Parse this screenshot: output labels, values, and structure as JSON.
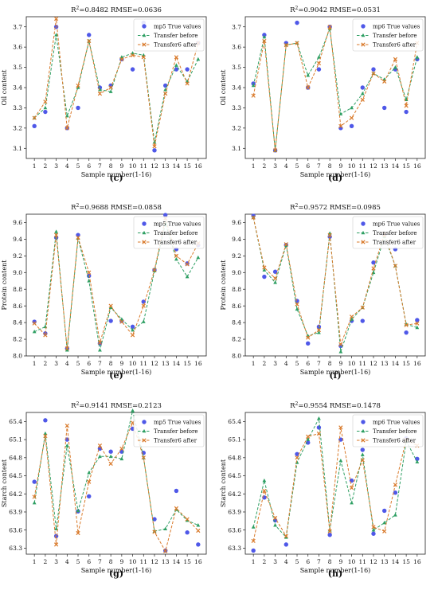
{
  "chart_data": [
    {
      "id": "c",
      "panel_label": "(c)",
      "type": "line",
      "title": "R²=0.8482   RMSE=0.0636",
      "xlabel": "Sample number(1-16)",
      "ylabel": "Oil content",
      "x": [
        1,
        2,
        3,
        4,
        5,
        6,
        7,
        8,
        9,
        10,
        11,
        12,
        13,
        14,
        15,
        16
      ],
      "ylim": [
        3.05,
        3.75
      ],
      "yticks": [
        3.1,
        3.2,
        3.3,
        3.4,
        3.5,
        3.6,
        3.7
      ],
      "ytick_decimals": 1,
      "legend": "top-right",
      "series": [
        {
          "name": "mp5 True values",
          "style": "points",
          "color": "#4f58e8",
          "values": [
            3.21,
            3.28,
            3.7,
            3.2,
            3.3,
            3.66,
            3.4,
            3.41,
            3.54,
            3.49,
            3.72,
            3.09,
            3.41,
            3.49,
            3.49,
            3.62
          ]
        },
        {
          "name": "Transfer before",
          "style": "dash-triangle",
          "color": "#2e9f63",
          "values": [
            3.25,
            3.3,
            3.66,
            3.26,
            3.4,
            3.63,
            3.39,
            3.38,
            3.55,
            3.57,
            3.56,
            3.13,
            3.39,
            3.51,
            3.43,
            3.54
          ]
        },
        {
          "name": "Transfer6 after",
          "style": "dash-x",
          "color": "#d97a2b",
          "values": [
            3.25,
            3.33,
            3.74,
            3.2,
            3.41,
            3.63,
            3.37,
            3.4,
            3.54,
            3.56,
            3.55,
            3.11,
            3.37,
            3.55,
            3.42,
            3.62
          ]
        }
      ]
    },
    {
      "id": "d",
      "panel_label": "(d)",
      "type": "line",
      "title": "R²=0.9042   RMSE=0.0531",
      "xlabel": "Sample number(1-16)",
      "ylabel": "Oil content",
      "x": [
        1,
        2,
        3,
        4,
        5,
        6,
        7,
        8,
        9,
        10,
        11,
        12,
        13,
        14,
        15,
        16
      ],
      "ylim": [
        3.05,
        3.75
      ],
      "yticks": [
        3.1,
        3.2,
        3.3,
        3.4,
        3.5,
        3.6,
        3.7
      ],
      "ytick_decimals": 1,
      "legend": "top-right",
      "series": [
        {
          "name": "mp6 True values",
          "style": "points",
          "color": "#4f58e8",
          "values": [
            3.42,
            3.66,
            3.09,
            3.62,
            3.72,
            3.4,
            3.49,
            3.7,
            3.2,
            3.21,
            3.4,
            3.49,
            3.3,
            3.49,
            3.28,
            3.54
          ]
        },
        {
          "name": "Transfer before",
          "style": "dash-triangle",
          "color": "#2e9f63",
          "values": [
            3.41,
            3.65,
            3.09,
            3.61,
            3.62,
            3.46,
            3.55,
            3.69,
            3.27,
            3.3,
            3.37,
            3.47,
            3.44,
            3.5,
            3.34,
            3.55
          ]
        },
        {
          "name": "Transfer6 after",
          "style": "dash-x",
          "color": "#d97a2b",
          "values": [
            3.36,
            3.63,
            3.09,
            3.61,
            3.62,
            3.4,
            3.52,
            3.7,
            3.21,
            3.25,
            3.34,
            3.47,
            3.43,
            3.54,
            3.31,
            3.62
          ]
        }
      ]
    },
    {
      "id": "e",
      "panel_label": "(e)",
      "type": "line",
      "title": "R²=0.9688   RMSE=0.0858",
      "xlabel": "Sample number(1-16)",
      "ylabel": "Protein content",
      "x": [
        1,
        2,
        3,
        4,
        5,
        6,
        7,
        8,
        9,
        10,
        11,
        12,
        13,
        14,
        15,
        16
      ],
      "ylim": [
        8.0,
        9.7
      ],
      "yticks": [
        8.0,
        8.2,
        8.4,
        8.6,
        8.8,
        9.0,
        9.2,
        9.4,
        9.6
      ],
      "ytick_decimals": 1,
      "legend": "top-right",
      "series": [
        {
          "name": "mp5 True values",
          "style": "points",
          "color": "#4f58e8",
          "values": [
            8.41,
            8.27,
            9.42,
            8.09,
            9.45,
            8.96,
            8.15,
            8.42,
            8.42,
            8.35,
            8.65,
            9.03,
            9.69,
            9.28,
            9.11,
            9.33
          ]
        },
        {
          "name": "Transfer before",
          "style": "dash-triangle",
          "color": "#2e9f63",
          "values": [
            8.29,
            8.35,
            9.49,
            8.07,
            9.41,
            8.9,
            8.07,
            8.58,
            8.44,
            8.31,
            8.41,
            9.02,
            9.59,
            9.16,
            8.95,
            9.18
          ]
        },
        {
          "name": "Transfer6 after",
          "style": "dash-x",
          "color": "#d97a2b",
          "values": [
            8.39,
            8.25,
            9.45,
            8.09,
            9.42,
            9.0,
            8.16,
            8.6,
            8.41,
            8.25,
            8.6,
            9.03,
            9.65,
            9.2,
            9.1,
            9.35
          ]
        }
      ]
    },
    {
      "id": "f",
      "panel_label": "(f)",
      "type": "line",
      "title": "R²=0.9572   RMSE=0.0985",
      "xlabel": "Sample number(1-16)",
      "ylabel": "Protein content",
      "x": [
        1,
        2,
        3,
        4,
        5,
        6,
        7,
        8,
        9,
        10,
        11,
        12,
        13,
        14,
        15,
        16
      ],
      "ylim": [
        8.0,
        9.7
      ],
      "yticks": [
        8.0,
        8.2,
        8.4,
        8.6,
        8.8,
        9.0,
        9.2,
        9.4,
        9.6
      ],
      "ytick_decimals": 1,
      "legend": "top-right",
      "series": [
        {
          "name": "mp6 True values",
          "style": "points",
          "color": "#4f58e8",
          "values": [
            9.68,
            8.95,
            9.01,
            9.33,
            8.66,
            8.15,
            8.35,
            9.43,
            8.12,
            8.42,
            8.42,
            9.12,
            9.45,
            9.28,
            8.28,
            8.43
          ]
        },
        {
          "name": "Transfer before",
          "style": "dash-triangle",
          "color": "#2e9f63",
          "values": [
            9.66,
            9.03,
            8.88,
            9.33,
            8.56,
            8.24,
            8.28,
            9.47,
            8.05,
            8.44,
            8.58,
            9.0,
            9.43,
            9.08,
            8.38,
            8.34
          ]
        },
        {
          "name": "Transfer6 after",
          "style": "dash-x",
          "color": "#d97a2b",
          "values": [
            9.66,
            9.06,
            8.93,
            9.34,
            8.62,
            8.22,
            8.31,
            9.45,
            8.14,
            8.47,
            8.58,
            9.05,
            9.46,
            9.08,
            8.37,
            8.39
          ]
        }
      ]
    },
    {
      "id": "g",
      "panel_label": "(g)",
      "type": "line",
      "title": "R²=0.9141   RMSE=0.2123",
      "xlabel": "Sample number(1-16)",
      "ylabel": "Starch content",
      "x": [
        1,
        2,
        3,
        4,
        5,
        6,
        7,
        8,
        9,
        10,
        11,
        12,
        13,
        14,
        15,
        16
      ],
      "ylim": [
        63.2,
        65.55
      ],
      "yticks": [
        63.3,
        63.6,
        63.9,
        64.2,
        64.5,
        64.8,
        65.1,
        65.4
      ],
      "ytick_decimals": 1,
      "legend": "top-right",
      "series": [
        {
          "name": "mp5 True values",
          "style": "points",
          "color": "#4f58e8",
          "values": [
            64.4,
            65.42,
            63.5,
            65.1,
            63.91,
            64.16,
            64.95,
            64.9,
            64.9,
            65.28,
            64.88,
            63.78,
            63.26,
            64.25,
            63.56,
            63.36
          ]
        },
        {
          "name": "Transfer before",
          "style": "dash-triangle",
          "color": "#2e9f63",
          "values": [
            64.05,
            65.2,
            63.62,
            65.0,
            63.92,
            64.55,
            64.82,
            64.82,
            64.78,
            65.58,
            64.8,
            63.58,
            63.62,
            63.94,
            63.76,
            63.68
          ]
        },
        {
          "name": "Transfer6 after",
          "style": "dash-x",
          "color": "#d97a2b",
          "values": [
            64.15,
            65.16,
            63.36,
            65.33,
            63.55,
            64.4,
            65.0,
            64.7,
            64.95,
            65.38,
            64.8,
            63.57,
            63.25,
            63.96,
            63.78,
            63.59
          ]
        }
      ]
    },
    {
      "id": "h",
      "panel_label": "(h)",
      "type": "line",
      "title": "R²=0.9554   RMSE=0.1478",
      "xlabel": "Sample number(1-16)",
      "ylabel": "Starch content",
      "x": [
        1,
        2,
        3,
        4,
        5,
        6,
        7,
        8,
        9,
        10,
        11,
        12,
        13,
        14,
        15,
        16
      ],
      "ylim": [
        63.2,
        65.55
      ],
      "yticks": [
        63.3,
        63.6,
        63.9,
        64.2,
        64.5,
        64.8,
        65.1,
        65.4
      ],
      "ytick_decimals": 1,
      "legend": "top-right",
      "series": [
        {
          "name": "mp6 True values",
          "style": "points",
          "color": "#4f58e8",
          "values": [
            63.26,
            64.14,
            63.76,
            63.36,
            64.86,
            65.05,
            65.3,
            63.52,
            65.1,
            64.42,
            64.93,
            63.54,
            63.92,
            64.22,
            65.12,
            64.78
          ]
        },
        {
          "name": "Transfer before",
          "style": "dash-triangle",
          "color": "#2e9f63",
          "values": [
            63.65,
            64.42,
            63.68,
            63.48,
            64.72,
            65.1,
            65.45,
            63.6,
            64.75,
            64.05,
            64.85,
            63.6,
            63.72,
            63.85,
            65.08,
            64.73
          ]
        },
        {
          "name": "Transfer6 after",
          "style": "dash-x",
          "color": "#d97a2b",
          "values": [
            63.42,
            64.25,
            63.8,
            63.5,
            64.8,
            65.15,
            65.2,
            63.58,
            65.3,
            64.3,
            64.76,
            63.65,
            63.58,
            64.35,
            65.1,
            65.0
          ]
        }
      ]
    }
  ]
}
